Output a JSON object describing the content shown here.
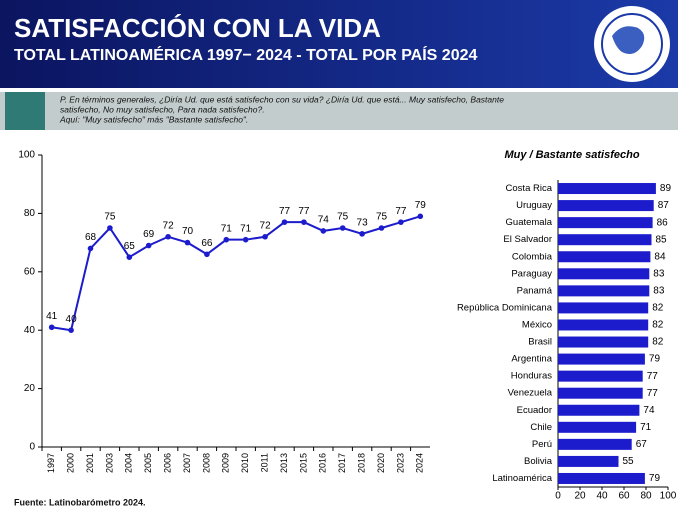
{
  "header": {
    "title": "SATISFACCIÓN CON LA VIDA",
    "subtitle": "TOTAL LATINOAMÉRICA 1997− 2024 - TOTAL POR PAÍS 2024"
  },
  "question": [
    "P. En términos generales, ¿Diría Ud. que está  satisfecho con su vida? ¿Diría Ud. que está... Muy satisfecho, Bastante",
    "satisfecho, No muy satisfecho, Para nada satisfecho?.",
    "Aquí: \"Muy satisfecho\" más \"Bastante satisfecho\"."
  ],
  "source": "Fuente: Latinobarómetro 2024.",
  "chart_data": [
    {
      "type": "line",
      "color": "#1c1ccc",
      "categories": [
        "1997",
        "2000",
        "2001",
        "2003",
        "2004",
        "2005",
        "2006",
        "2007",
        "2008",
        "2009",
        "2010",
        "2011",
        "2013",
        "2015",
        "2016",
        "2017",
        "2018",
        "2020",
        "2023",
        "2024"
      ],
      "values": [
        41,
        40,
        68,
        75,
        65,
        69,
        72,
        70,
        66,
        71,
        71,
        72,
        77,
        77,
        74,
        75,
        73,
        75,
        77,
        79
      ],
      "ylim": [
        0,
        100
      ],
      "yticks": [
        0,
        20,
        40,
        60,
        80,
        100
      ]
    },
    {
      "type": "bar",
      "orientation": "horizontal",
      "title": "Muy / Bastante satisfecho",
      "color": "#1c1ccc",
      "categories": [
        "Costa Rica",
        "Uruguay",
        "Guatemala",
        "El Salvador",
        "Colombia",
        "Paraguay",
        "Panamá",
        "República Dominicana",
        "México",
        "Brasil",
        "Argentina",
        "Honduras",
        "Venezuela",
        "Ecuador",
        "Chile",
        "Perú",
        "Bolivia",
        "Latinoamérica"
      ],
      "values": [
        89,
        87,
        86,
        85,
        84,
        83,
        83,
        82,
        82,
        82,
        79,
        77,
        77,
        74,
        71,
        67,
        55,
        79
      ],
      "xlim": [
        0,
        100
      ],
      "xticks": [
        0,
        20,
        40,
        60,
        80,
        100
      ]
    }
  ]
}
